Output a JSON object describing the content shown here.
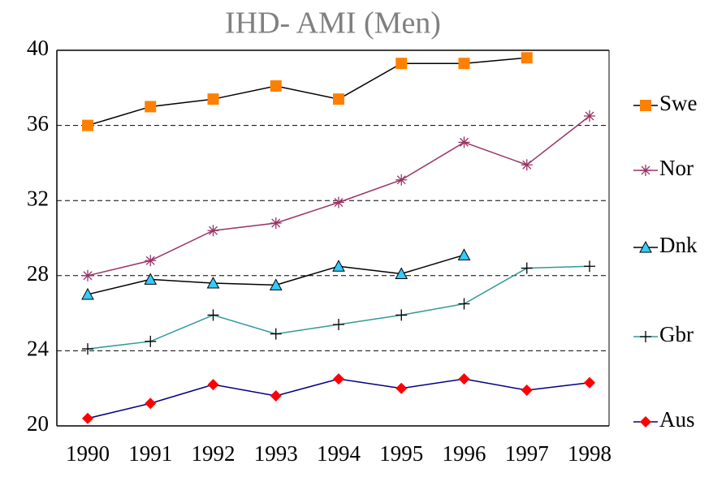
{
  "chart_data": {
    "type": "line",
    "title": "IHD- AMI (Men)",
    "categories": [
      "1990",
      "1991",
      "1992",
      "1993",
      "1994",
      "1995",
      "1996",
      "1997",
      "1998"
    ],
    "series": [
      {
        "name": "Swe",
        "color": "#000000",
        "marker_color": "#ff8000",
        "marker": "square",
        "values": [
          36.0,
          37.0,
          37.4,
          38.1,
          37.4,
          39.3,
          39.3,
          39.6,
          null
        ]
      },
      {
        "name": "Nor",
        "color": "#993366",
        "marker_color": "#993366",
        "marker": "star",
        "values": [
          28.0,
          28.8,
          30.4,
          30.8,
          31.9,
          33.1,
          35.1,
          33.9,
          36.5
        ]
      },
      {
        "name": "Dnk",
        "color": "#000000",
        "marker_color": "#33ccff",
        "marker": "triangle",
        "values": [
          27.0,
          27.8,
          27.6,
          27.5,
          28.5,
          28.1,
          29.1,
          null,
          null
        ]
      },
      {
        "name": "Gbr",
        "color": "#339999",
        "marker_color": "#000000",
        "marker": "plus",
        "values": [
          24.1,
          24.5,
          25.9,
          24.9,
          25.4,
          25.9,
          26.5,
          28.4,
          28.5
        ]
      },
      {
        "name": "Aus",
        "color": "#000080",
        "marker_color": "#ff0000",
        "marker": "diamond",
        "values": [
          20.4,
          21.2,
          22.2,
          21.6,
          22.5,
          22.0,
          22.5,
          21.9,
          22.3
        ]
      }
    ],
    "ylim": [
      20,
      40
    ],
    "yticks": [
      20,
      24,
      28,
      32,
      36,
      40
    ],
    "grid": true,
    "legend": "right"
  }
}
